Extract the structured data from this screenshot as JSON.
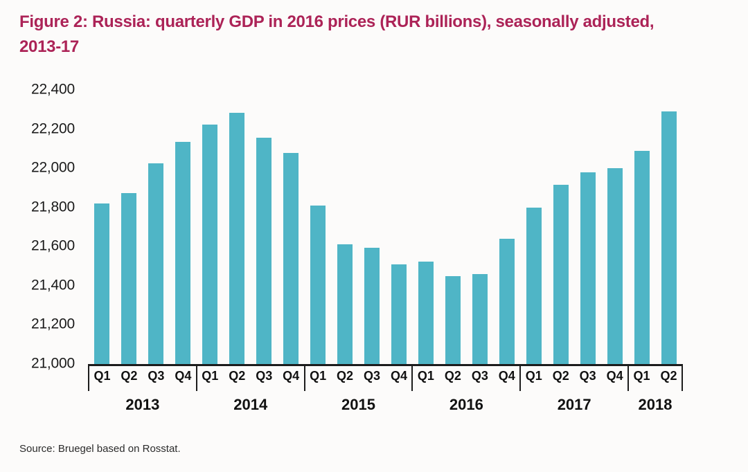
{
  "page": {
    "title": {
      "line1": "Figure 2: Russia: quarterly GDP in 2016 prices (RUR billions), seasonally adjusted,",
      "line2": "2013-17",
      "color": "#ac2357"
    },
    "source": "Source: Bruegel based on Rosstat."
  },
  "chart_data": {
    "type": "bar",
    "title": "Figure 2: Russia: quarterly GDP in 2016 prices (RUR billions), seasonally adjusted, 2013-17",
    "xlabel": "",
    "ylabel": "",
    "ylim": [
      21000,
      22400
    ],
    "ytick_interval": 200,
    "ytick_labels": [
      "21,000",
      "21,200",
      "21,400",
      "21,600",
      "21,800",
      "22,000",
      "22,200",
      "22,400"
    ],
    "grid": false,
    "legend": false,
    "bar_color": "#4fb5c6",
    "axis_color": "#1c1c1c",
    "text_color": "#1a1a1a",
    "quarters": [
      "Q1",
      "Q2",
      "Q3",
      "Q4",
      "Q1",
      "Q2",
      "Q3",
      "Q4",
      "Q1",
      "Q2",
      "Q3",
      "Q4",
      "Q1",
      "Q2",
      "Q3",
      "Q4",
      "Q1",
      "Q2",
      "Q3",
      "Q4",
      "Q1",
      "Q2"
    ],
    "year_groups": [
      {
        "label": "2013",
        "count": 4
      },
      {
        "label": "2014",
        "count": 4
      },
      {
        "label": "2015",
        "count": 4
      },
      {
        "label": "2016",
        "count": 4
      },
      {
        "label": "2017",
        "count": 4
      },
      {
        "label": "2018",
        "count": 2
      }
    ],
    "values": [
      21820,
      21875,
      22025,
      22135,
      22225,
      22285,
      22155,
      22080,
      21810,
      21610,
      21595,
      21510,
      21525,
      21450,
      21460,
      21640,
      21800,
      21915,
      21980,
      22000,
      22090,
      22290
    ]
  }
}
